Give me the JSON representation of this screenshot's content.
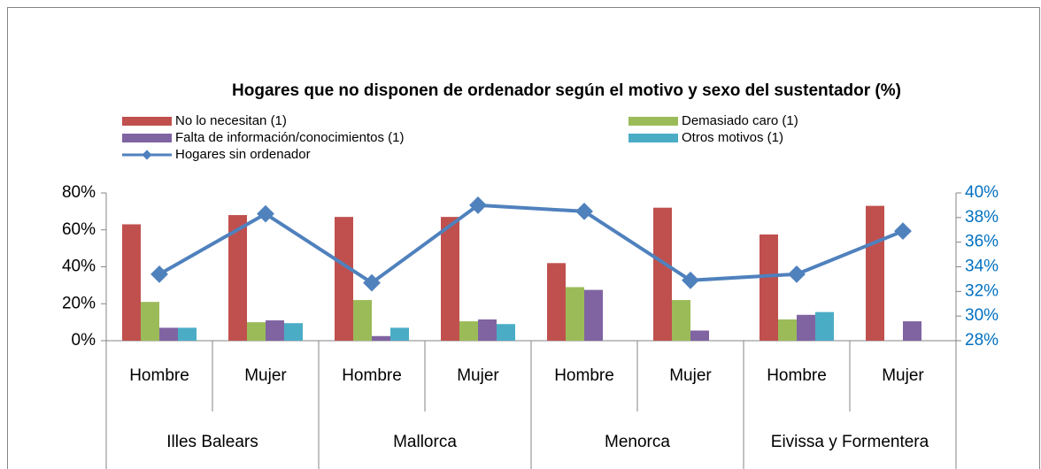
{
  "chart_data": {
    "type": "bar",
    "title": "Hogares que no disponen de ordenador según el motivo y sexo del sustentador (%)",
    "categories": [
      "Hombre",
      "Mujer",
      "Hombre",
      "Mujer",
      "Hombre",
      "Mujer",
      "Hombre",
      "Mujer"
    ],
    "category_groups": [
      "Illes Balears",
      "Mallorca",
      "Menorca",
      "Eivissa y Formentera"
    ],
    "series": [
      {
        "name": "No lo necesitan (1)",
        "color": "#c0504d",
        "values": [
          63,
          68,
          67,
          67,
          42,
          72,
          57.5,
          73
        ]
      },
      {
        "name": "Demasiado caro (1)",
        "color": "#9bbb59",
        "values": [
          21,
          10,
          22,
          10.5,
          29,
          22,
          11.5,
          0
        ]
      },
      {
        "name": "Falta de información/conocimientos (1)",
        "color": "#8064a2",
        "values": [
          7,
          11,
          2.5,
          11.5,
          27.5,
          5.5,
          14,
          10.5
        ]
      },
      {
        "name": "Otros motivos (1)",
        "color": "#4bacc6",
        "values": [
          7,
          9.5,
          7,
          9,
          0,
          0,
          15.5,
          0
        ]
      },
      {
        "name": "Hogares sin ordenador",
        "color": "#4f81bd",
        "type": "line",
        "axis": "y2",
        "values": [
          33.4,
          38.3,
          32.7,
          39.0,
          38.5,
          32.9,
          33.4,
          36.9
        ]
      }
    ],
    "ylim": [
      0,
      80
    ],
    "yticks": [
      {
        "value": 0,
        "label": "0%"
      },
      {
        "value": 20,
        "label": "20%"
      },
      {
        "value": 40,
        "label": "40%"
      },
      {
        "value": 60,
        "label": "60%"
      },
      {
        "value": 80,
        "label": "80%"
      }
    ],
    "y2lim": [
      28,
      40
    ],
    "y2ticks": [
      {
        "value": 28,
        "label": "28%"
      },
      {
        "value": 30,
        "label": "30%"
      },
      {
        "value": 32,
        "label": "32%"
      },
      {
        "value": 34,
        "label": "34%"
      },
      {
        "value": 36,
        "label": "36%"
      },
      {
        "value": 38,
        "label": "38%"
      },
      {
        "value": 40,
        "label": "40%"
      }
    ],
    "grid": false
  }
}
